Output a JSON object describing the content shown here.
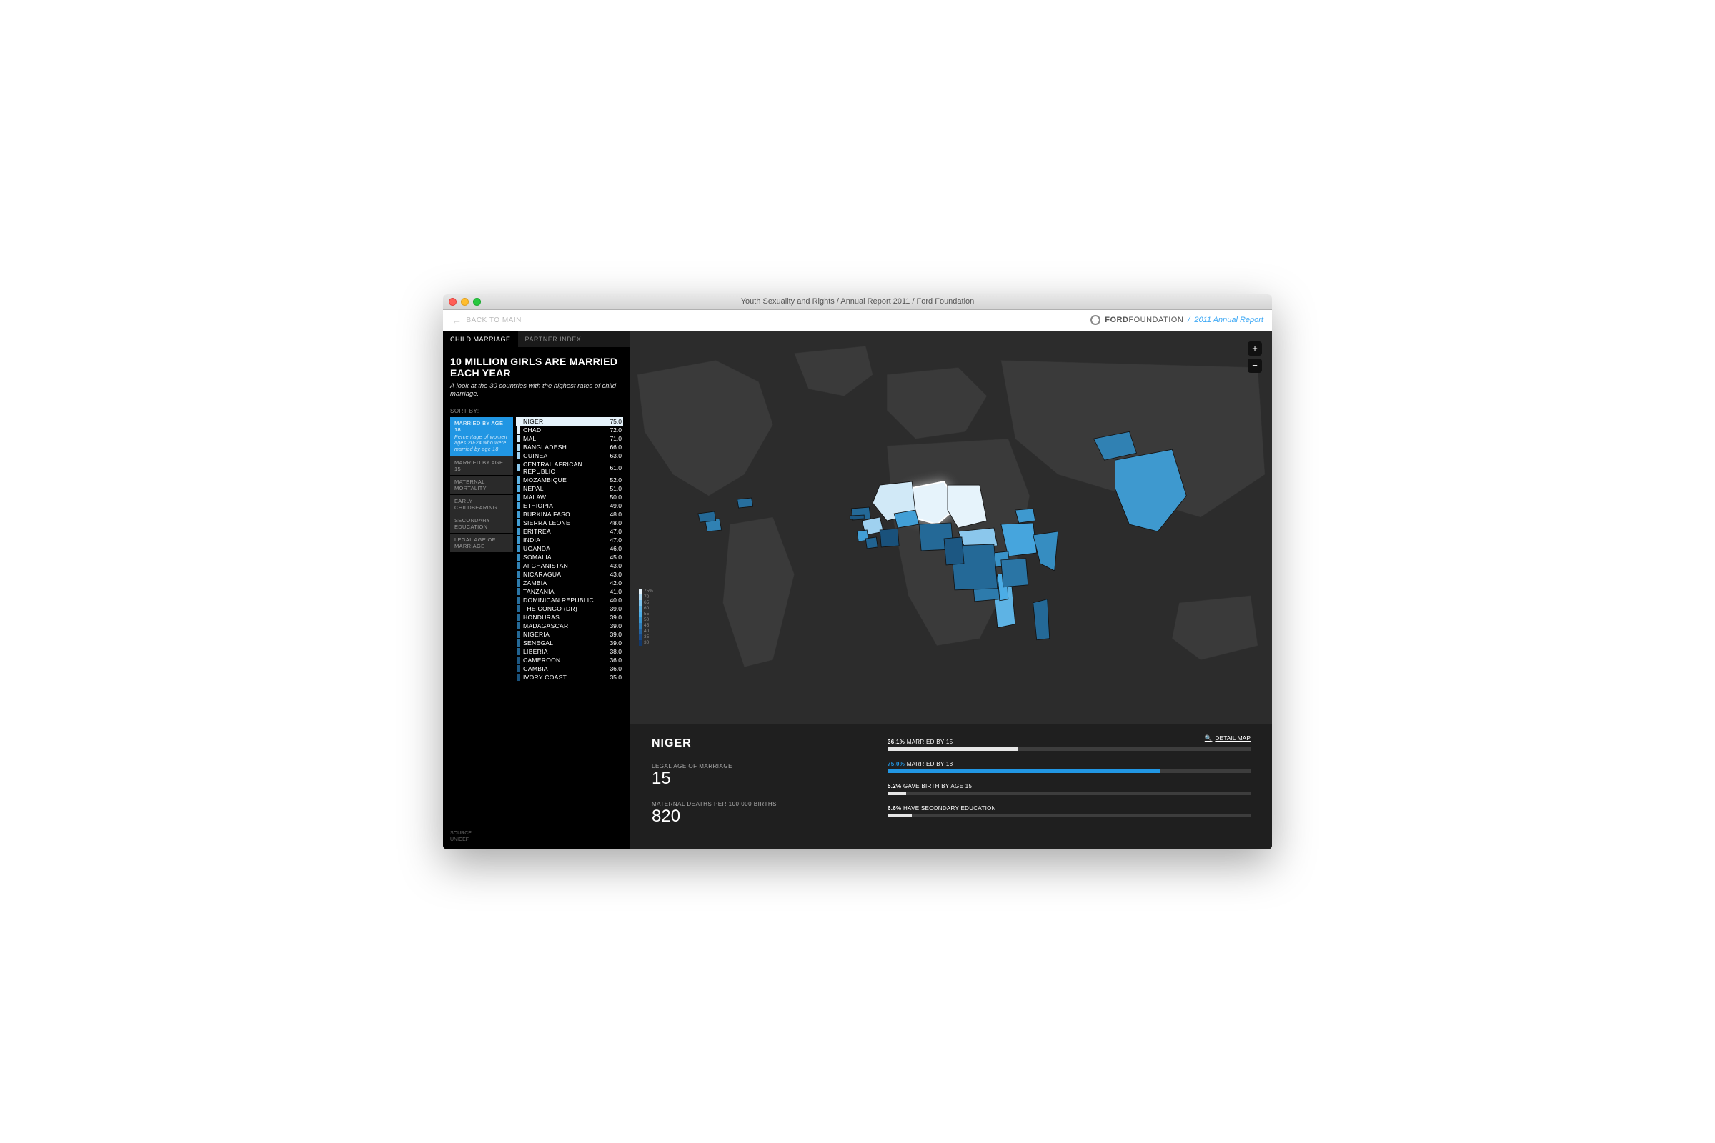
{
  "window": {
    "title": "Youth Sexuality and Rights / Annual Report 2011 / Ford Foundation"
  },
  "topbar": {
    "back": "BACK TO MAIN",
    "brand_bold": "FORD",
    "brand_rest": "FOUNDATION",
    "sep": "/",
    "sub": "2011 Annual Report"
  },
  "tabs": [
    {
      "label": "CHILD MARRIAGE",
      "active": true
    },
    {
      "label": "PARTNER INDEX",
      "active": false
    }
  ],
  "headline": "10 MILLION GIRLS ARE MARRIED EACH YEAR",
  "subhead": "A look at the 30 countries with the highest rates of child marriage.",
  "sort_label": "SORT BY:",
  "sorters": [
    {
      "label": "MARRIED BY AGE 18",
      "desc": "Percentage of women ages 20-24 who were married by age 18",
      "active": true
    },
    {
      "label": "MARRIED BY AGE 15",
      "active": false
    },
    {
      "label": "MATERNAL MORTALITY",
      "active": false
    },
    {
      "label": "EARLY CHILDBEARING",
      "active": false
    },
    {
      "label": "SECONDARY EDUCATION",
      "active": false
    },
    {
      "label": "LEGAL AGE OF MARRIAGE",
      "active": false
    }
  ],
  "colors": {
    "scale": [
      "#e6f3fb",
      "#b3dcf4",
      "#7fc4ed",
      "#4cade6",
      "#3995d0",
      "#2e7cb8",
      "#24639f",
      "#1a4a86"
    ],
    "active": "#2196e3",
    "track": "#3d3d3d",
    "map_bg": "#2c2c2c",
    "land": "#3a3a3a"
  },
  "countries": [
    {
      "name": "NIGER",
      "value": 75.0,
      "color": "#e6f3fb",
      "highlight": true
    },
    {
      "name": "CHAD",
      "value": 72.0,
      "color": "#e6f3fb"
    },
    {
      "name": "MALI",
      "value": 71.0,
      "color": "#d1e9f7"
    },
    {
      "name": "BANGLADESH",
      "value": 66.0,
      "color": "#b3dcf4"
    },
    {
      "name": "GUINEA",
      "value": 63.0,
      "color": "#9fd1f0"
    },
    {
      "name": "CENTRAL AFRICAN REPUBLIC",
      "value": 61.0,
      "color": "#8bc7ec"
    },
    {
      "name": "MOZAMBIQUE",
      "value": 52.0,
      "color": "#5eb3e4"
    },
    {
      "name": "NEPAL",
      "value": 51.0,
      "color": "#55afe2"
    },
    {
      "name": "MALAWI",
      "value": 50.0,
      "color": "#4cade6"
    },
    {
      "name": "ETHIOPIA",
      "value": 49.0,
      "color": "#46a5dd"
    },
    {
      "name": "BURKINA FASO",
      "value": 48.0,
      "color": "#429fd6"
    },
    {
      "name": "SIERRA LEONE",
      "value": 48.0,
      "color": "#429fd6"
    },
    {
      "name": "ERITREA",
      "value": 47.0,
      "color": "#3e99cf"
    },
    {
      "name": "INDIA",
      "value": 47.0,
      "color": "#3e99cf"
    },
    {
      "name": "UGANDA",
      "value": 46.0,
      "color": "#3a93c8"
    },
    {
      "name": "SOMALIA",
      "value": 45.0,
      "color": "#368dc1"
    },
    {
      "name": "AFGHANISTAN",
      "value": 43.0,
      "color": "#3081b3"
    },
    {
      "name": "NICARAGUA",
      "value": 43.0,
      "color": "#3081b3"
    },
    {
      "name": "ZAMBIA",
      "value": 42.0,
      "color": "#2d7bac"
    },
    {
      "name": "TANZANIA",
      "value": 41.0,
      "color": "#2a75a5"
    },
    {
      "name": "DOMINICAN REPUBLIC",
      "value": 40.0,
      "color": "#276f9e"
    },
    {
      "name": "THE CONGO (DR)",
      "value": 39.0,
      "color": "#246997"
    },
    {
      "name": "HONDURAS",
      "value": 39.0,
      "color": "#246997"
    },
    {
      "name": "MADAGASCAR",
      "value": 39.0,
      "color": "#246997"
    },
    {
      "name": "NIGERIA",
      "value": 39.0,
      "color": "#246997"
    },
    {
      "name": "SENEGAL",
      "value": 39.0,
      "color": "#246997"
    },
    {
      "name": "LIBERIA",
      "value": 38.0,
      "color": "#216390"
    },
    {
      "name": "CAMEROON",
      "value": 36.0,
      "color": "#1c5782"
    },
    {
      "name": "GAMBIA",
      "value": 36.0,
      "color": "#1c5782"
    },
    {
      "name": "IVORY COAST",
      "value": 35.0,
      "color": "#19517b"
    }
  ],
  "legend": [
    {
      "v": "75%",
      "c": "#e6f3fb"
    },
    {
      "v": "70",
      "c": "#b3dcf4"
    },
    {
      "v": "65",
      "c": "#7fc4ed"
    },
    {
      "v": "60",
      "c": "#5eb3e4"
    },
    {
      "v": "55",
      "c": "#4cade6"
    },
    {
      "v": "50",
      "c": "#3995d0"
    },
    {
      "v": "45",
      "c": "#2e7cb8"
    },
    {
      "v": "40",
      "c": "#24639f"
    },
    {
      "v": "35",
      "c": "#1a4a86"
    },
    {
      "v": "30",
      "c": "#13396b"
    }
  ],
  "detail": {
    "country": "NIGER",
    "legal_age_label": "LEGAL AGE OF MARRIAGE",
    "legal_age": "15",
    "maternal_label": "MATERNAL DEATHS PER 100,000 BIRTHS",
    "maternal": "820",
    "map_link": "DETAIL MAP",
    "bars": [
      {
        "pct": "36.1%",
        "label": " MARRIED BY 15",
        "value": 36.1,
        "color": "#e6e6e6"
      },
      {
        "pct": "75.0%",
        "label": " MARRIED BY 18",
        "value": 75.0,
        "color": "#2196e3"
      },
      {
        "pct": "5.2%",
        "label": " GAVE BIRTH BY AGE 15",
        "value": 5.2,
        "color": "#e6e6e6"
      },
      {
        "pct": "6.6%",
        "label": " HAVE SECONDARY EDUCATION",
        "value": 6.6,
        "color": "#e6e6e6"
      }
    ]
  },
  "source": {
    "l1": "SOURCE:",
    "l2": "UNICEF"
  }
}
